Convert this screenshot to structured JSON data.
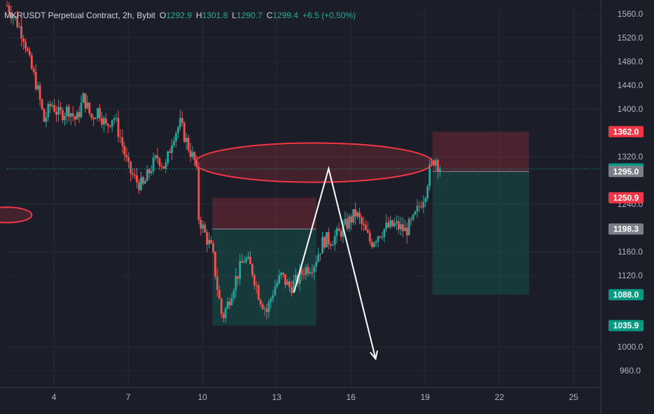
{
  "legend": {
    "symbol": "MKRUSDT Perpetual Contract, 2h, Bybit",
    "open_label": "O",
    "open": "1292.9",
    "high_label": "H",
    "high": "1301.8",
    "low_label": "L",
    "low": "1290.7",
    "close_label": "C",
    "close": "1299.4",
    "change": "+6.5 (+0.50%)"
  },
  "colors": {
    "background": "#1b1e28",
    "up": "#26a69a",
    "down": "#ef5350",
    "grid": "#262a36",
    "axis_text": "#b2b5be",
    "tag_red": "#f23645",
    "tag_green": "#089981",
    "tag_gray": "#7a7e88"
  },
  "chart_data": {
    "type": "candlestick",
    "y_axis": {
      "ticks": [
        "1560.0",
        "1520.0",
        "1480.0",
        "1440.0",
        "1400.0",
        "1320.0",
        "1240.0",
        "1160.0",
        "1120.0",
        "1000.0",
        "960.0"
      ],
      "range": [
        932,
        1574
      ]
    },
    "x_axis": {
      "ticks": [
        "4",
        "7",
        "10",
        "13",
        "16",
        "19",
        "22",
        "25"
      ],
      "tick_days": [
        4,
        7,
        10,
        13,
        16,
        19,
        22,
        25
      ],
      "range_days": [
        2.1,
        26.1
      ]
    },
    "price_tags": [
      {
        "label": "1362.0",
        "value": 1362.0,
        "kind": "red"
      },
      {
        "label": "1299.4",
        "value": 1299.4,
        "kind": "green"
      },
      {
        "label": "1295.0",
        "value": 1295.0,
        "kind": "gray"
      },
      {
        "label": "1250.9",
        "value": 1250.9,
        "kind": "red"
      },
      {
        "label": "1198.3",
        "value": 1198.3,
        "kind": "gray"
      },
      {
        "label": "1088.0",
        "value": 1088.0,
        "kind": "green"
      },
      {
        "label": "1035.9",
        "value": 1035.9,
        "kind": "green"
      }
    ],
    "last_price": 1299.4,
    "price_path": [
      [
        2.1,
        1574
      ],
      [
        2.4,
        1555
      ],
      [
        2.8,
        1520
      ],
      [
        3.0,
        1480
      ],
      [
        3.3,
        1440
      ],
      [
        3.6,
        1380
      ],
      [
        3.9,
        1410
      ],
      [
        4.2,
        1390
      ],
      [
        4.6,
        1400
      ],
      [
        4.9,
        1380
      ],
      [
        5.2,
        1420
      ],
      [
        5.5,
        1385
      ],
      [
        5.8,
        1400
      ],
      [
        6.1,
        1370
      ],
      [
        6.4,
        1390
      ],
      [
        6.7,
        1350
      ],
      [
        7.0,
        1300
      ],
      [
        7.3,
        1280
      ],
      [
        7.6,
        1270
      ],
      [
        7.9,
        1300
      ],
      [
        8.2,
        1320
      ],
      [
        8.5,
        1300
      ],
      [
        8.8,
        1355
      ],
      [
        9.1,
        1375
      ],
      [
        9.4,
        1340
      ],
      [
        9.6,
        1320
      ],
      [
        9.75,
        1305
      ],
      [
        9.85,
        1218
      ],
      [
        10.1,
        1190
      ],
      [
        10.4,
        1160
      ],
      [
        10.6,
        1100
      ],
      [
        10.8,
        1048
      ],
      [
        11.0,
        1070
      ],
      [
        11.3,
        1110
      ],
      [
        11.7,
        1150
      ],
      [
        12.0,
        1130
      ],
      [
        12.3,
        1085
      ],
      [
        12.6,
        1060
      ],
      [
        12.9,
        1100
      ],
      [
        13.2,
        1120
      ],
      [
        13.5,
        1100
      ],
      [
        13.8,
        1110
      ],
      [
        14.1,
        1130
      ],
      [
        14.5,
        1140
      ],
      [
        14.9,
        1180
      ],
      [
        15.2,
        1180
      ],
      [
        15.5,
        1190
      ],
      [
        15.9,
        1210
      ],
      [
        16.2,
        1225
      ],
      [
        16.5,
        1200
      ],
      [
        16.8,
        1175
      ],
      [
        17.1,
        1190
      ],
      [
        17.4,
        1200
      ],
      [
        17.8,
        1205
      ],
      [
        18.2,
        1195
      ],
      [
        18.5,
        1210
      ],
      [
        18.8,
        1240
      ],
      [
        19.0,
        1260
      ],
      [
        19.2,
        1300
      ],
      [
        19.4,
        1320
      ],
      [
        19.6,
        1299.4
      ]
    ],
    "drawings": {
      "ellipse_main": {
        "cx_day": 14.5,
        "cy_price": 1310,
        "rx_days": 4.8,
        "ry_price": 33
      },
      "ellipse_left": {
        "cx_day": 2.1,
        "cy_price": 1222,
        "rx_days": 1.0,
        "ry_price": 13
      },
      "position_1": {
        "from_day": 10.4,
        "to_day": 14.6,
        "stop": 1250.9,
        "entry": 1198.3,
        "target": 1035.9
      },
      "position_2": {
        "from_day": 19.3,
        "to_day": 23.2,
        "stop": 1362.0,
        "entry": 1295.0,
        "target": 1088.0
      },
      "path_arrow": [
        [
          13.7,
          1092
        ],
        [
          15.1,
          1300
        ],
        [
          17.0,
          980
        ]
      ]
    }
  }
}
